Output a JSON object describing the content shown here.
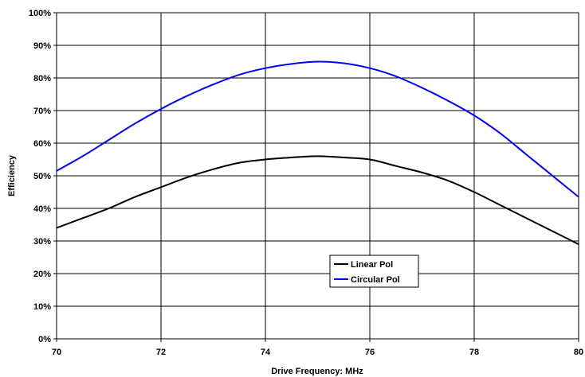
{
  "chart_data": {
    "type": "line",
    "title": "",
    "xlabel": "Drive Frequency: MHz",
    "ylabel": "Efficiency",
    "xlim": [
      70,
      80
    ],
    "ylim": [
      0,
      100
    ],
    "x_ticks": [
      "70",
      "72",
      "74",
      "76",
      "78",
      "80"
    ],
    "y_ticks": [
      "0%",
      "10%",
      "20%",
      "30%",
      "40%",
      "50%",
      "60%",
      "70%",
      "80%",
      "90%",
      "100%"
    ],
    "grid": true,
    "legend_position": "center-right",
    "x": [
      70,
      70.5,
      71,
      71.5,
      72,
      72.5,
      73,
      73.5,
      74,
      74.5,
      75,
      75.5,
      76,
      76.5,
      77,
      77.5,
      78,
      78.5,
      79,
      79.5,
      80
    ],
    "series": [
      {
        "name": "Linear Pol",
        "color": "#000000",
        "values": [
          34,
          37,
          40,
          43.5,
          46.5,
          49.5,
          52,
          54,
          55,
          55.6,
          56,
          55.6,
          55,
          53,
          51,
          48.5,
          45,
          41,
          37,
          33,
          29
        ]
      },
      {
        "name": "Circular Pol",
        "color": "#0000ff",
        "values": [
          51.5,
          56,
          61,
          66,
          70.5,
          74.5,
          78,
          81,
          83,
          84.3,
          85,
          84.5,
          83,
          80.5,
          77,
          73,
          68.5,
          63,
          56.5,
          50,
          43.5
        ]
      }
    ]
  }
}
